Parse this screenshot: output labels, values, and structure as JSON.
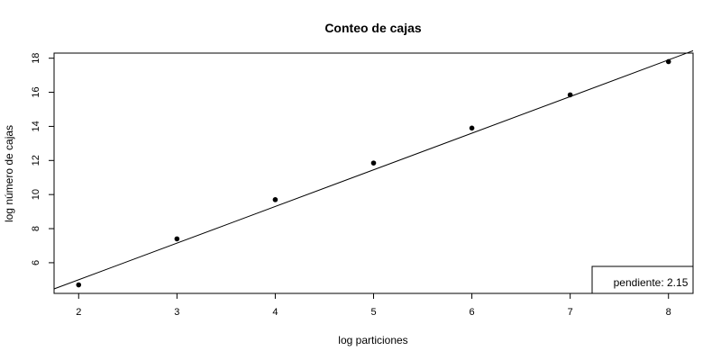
{
  "chart_data": {
    "type": "scatter",
    "title": "Conteo de cajas",
    "xlabel": "log particiones",
    "ylabel": "log número de cajas",
    "xlim": [
      1.75,
      8.25
    ],
    "ylim": [
      4.2,
      18.3
    ],
    "x_ticks": [
      2,
      3,
      4,
      5,
      6,
      7,
      8
    ],
    "y_ticks": [
      6,
      8,
      10,
      12,
      14,
      16,
      18
    ],
    "points": [
      {
        "x": 2,
        "y": 4.7
      },
      {
        "x": 3,
        "y": 7.4
      },
      {
        "x": 4,
        "y": 9.7
      },
      {
        "x": 5,
        "y": 11.85
      },
      {
        "x": 6,
        "y": 13.9
      },
      {
        "x": 7,
        "y": 15.85
      },
      {
        "x": 8,
        "y": 17.8
      }
    ],
    "fit_line": {
      "slope": 2.15,
      "intercept": 0.7
    },
    "grid": false,
    "legend": {
      "text": "pendiente: 2.15",
      "placement": "bottom-right"
    }
  }
}
